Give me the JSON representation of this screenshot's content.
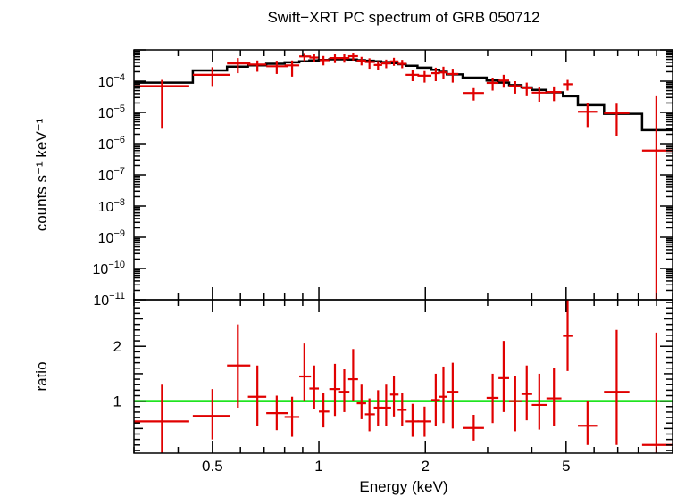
{
  "chart_data": [
    {
      "type": "scatter",
      "panel": "spectrum",
      "title": "Swift−XRT PC spectrum of GRB 050712",
      "xlabel": "Energy (keV)",
      "ylabel": "counts s⁻¹ keV⁻¹",
      "x_scale": "log",
      "y_scale": "log",
      "xlim": [
        0.3,
        10.0
      ],
      "ylim": [
        1e-11,
        0.001
      ],
      "y_ticks": [
        {
          "value": 0.0001,
          "base": "10",
          "exp": "−4"
        },
        {
          "value": 1e-05,
          "base": "10",
          "exp": "−5"
        },
        {
          "value": 1e-06,
          "base": "10",
          "exp": "−6"
        },
        {
          "value": 1e-07,
          "base": "10",
          "exp": "−7"
        },
        {
          "value": 1e-08,
          "base": "10",
          "exp": "−8"
        },
        {
          "value": 1e-09,
          "base": "10",
          "exp": "−9"
        },
        {
          "value": 1e-10,
          "base": "10",
          "exp": "−10"
        },
        {
          "value": 1e-11,
          "base": "10",
          "exp": "−11"
        }
      ],
      "series": [
        {
          "color": "#e00000",
          "points": [
            {
              "x": 0.36,
              "xlo": 0.3,
              "xhi": 0.43,
              "y": 7e-05,
              "ylo": 3e-06,
              "yhi": 0.00011
            },
            {
              "x": 0.5,
              "xlo": 0.44,
              "xhi": 0.56,
              "y": 0.00016,
              "ylo": 7e-05,
              "yhi": 0.00028
            },
            {
              "x": 0.59,
              "xlo": 0.55,
              "xhi": 0.64,
              "y": 0.00037,
              "ylo": 0.00018,
              "yhi": 0.00055
            },
            {
              "x": 0.67,
              "xlo": 0.63,
              "xhi": 0.71,
              "y": 0.00034,
              "ylo": 0.0002,
              "yhi": 0.00046
            },
            {
              "x": 0.76,
              "xlo": 0.71,
              "xhi": 0.82,
              "y": 0.0003,
              "ylo": 0.00017,
              "yhi": 0.00045
            },
            {
              "x": 0.84,
              "xlo": 0.8,
              "xhi": 0.88,
              "y": 0.00032,
              "ylo": 0.00014,
              "yhi": 0.00046
            },
            {
              "x": 0.91,
              "xlo": 0.88,
              "xhi": 0.95,
              "y": 0.00062,
              "ylo": 0.00044,
              "yhi": 0.0008
            },
            {
              "x": 0.97,
              "xlo": 0.94,
              "xhi": 1.0,
              "y": 0.00057,
              "ylo": 0.0004,
              "yhi": 0.00075
            },
            {
              "x": 1.03,
              "xlo": 1.0,
              "xhi": 1.07,
              "y": 0.00047,
              "ylo": 0.00032,
              "yhi": 0.00064
            },
            {
              "x": 1.11,
              "xlo": 1.07,
              "xhi": 1.15,
              "y": 0.00055,
              "ylo": 0.00038,
              "yhi": 0.00076
            },
            {
              "x": 1.18,
              "xlo": 1.14,
              "xhi": 1.22,
              "y": 0.00055,
              "ylo": 0.00039,
              "yhi": 0.00074
            },
            {
              "x": 1.25,
              "xlo": 1.21,
              "xhi": 1.29,
              "y": 0.00063,
              "ylo": 0.00046,
              "yhi": 0.00082
            },
            {
              "x": 1.32,
              "xlo": 1.28,
              "xhi": 1.36,
              "y": 0.00045,
              "ylo": 0.00032,
              "yhi": 0.0006
            },
            {
              "x": 1.39,
              "xlo": 1.35,
              "xhi": 1.44,
              "y": 0.00041,
              "ylo": 0.00025,
              "yhi": 0.00054
            },
            {
              "x": 1.47,
              "xlo": 1.43,
              "xhi": 1.51,
              "y": 0.00033,
              "ylo": 0.00023,
              "yhi": 0.00044
            },
            {
              "x": 1.55,
              "xlo": 1.5,
              "xhi": 1.6,
              "y": 0.00037,
              "ylo": 0.00026,
              "yhi": 0.00049
            },
            {
              "x": 1.63,
              "xlo": 1.59,
              "xhi": 1.68,
              "y": 0.00043,
              "ylo": 0.00031,
              "yhi": 0.00056
            },
            {
              "x": 1.72,
              "xlo": 1.67,
              "xhi": 1.77,
              "y": 0.00036,
              "ylo": 0.00026,
              "yhi": 0.00048
            },
            {
              "x": 1.84,
              "xlo": 1.76,
              "xhi": 1.92,
              "y": 0.00016,
              "ylo": 0.0001,
              "yhi": 0.00023
            },
            {
              "x": 1.99,
              "xlo": 1.9,
              "xhi": 2.08,
              "y": 0.00015,
              "ylo": 9e-05,
              "yhi": 0.00021
            },
            {
              "x": 2.14,
              "xlo": 2.08,
              "xhi": 2.2,
              "y": 0.00018,
              "ylo": 0.0001,
              "yhi": 0.00027
            },
            {
              "x": 2.25,
              "xlo": 2.19,
              "xhi": 2.31,
              "y": 0.00019,
              "ylo": 0.00012,
              "yhi": 0.00029
            },
            {
              "x": 2.39,
              "xlo": 2.3,
              "xhi": 2.48,
              "y": 0.00017,
              "ylo": 9e-05,
              "yhi": 0.00025
            },
            {
              "x": 2.74,
              "xlo": 2.55,
              "xhi": 2.93,
              "y": 4.2e-05,
              "ylo": 2.4e-05,
              "yhi": 6e-05
            },
            {
              "x": 3.1,
              "xlo": 2.98,
              "xhi": 3.22,
              "y": 8.8e-05,
              "ylo": 5e-05,
              "yhi": 0.00013
            },
            {
              "x": 3.33,
              "xlo": 3.22,
              "xhi": 3.45,
              "y": 0.000105,
              "ylo": 6.2e-05,
              "yhi": 0.00016
            },
            {
              "x": 3.59,
              "xlo": 3.45,
              "xhi": 3.74,
              "y": 7e-05,
              "ylo": 4e-05,
              "yhi": 0.0001
            },
            {
              "x": 3.87,
              "xlo": 3.74,
              "xhi": 4.01,
              "y": 6e-05,
              "ylo": 3.3e-05,
              "yhi": 9e-05
            },
            {
              "x": 4.2,
              "xlo": 4.0,
              "xhi": 4.41,
              "y": 4.3e-05,
              "ylo": 2.2e-05,
              "yhi": 6.5e-05
            },
            {
              "x": 4.62,
              "xlo": 4.4,
              "xhi": 4.85,
              "y": 4.5e-05,
              "ylo": 2.3e-05,
              "yhi": 6.8e-05
            },
            {
              "x": 5.05,
              "xlo": 4.9,
              "xhi": 5.21,
              "y": 8e-05,
              "ylo": 5e-05,
              "yhi": 0.00011
            },
            {
              "x": 5.75,
              "xlo": 5.4,
              "xhi": 6.12,
              "y": 1.05e-05,
              "ylo": 3.4e-06,
              "yhi": 2e-05
            },
            {
              "x": 6.95,
              "xlo": 6.4,
              "xhi": 7.55,
              "y": 9.5e-06,
              "ylo": 1.8e-06,
              "yhi": 1.9e-05
            },
            {
              "x": 9.0,
              "xlo": 8.2,
              "xhi": 10.0,
              "y": 6e-07,
              "ylo": 1e-11,
              "yhi": 3.3e-05
            }
          ]
        }
      ],
      "model": {
        "color": "#000000",
        "steps": [
          {
            "xlo": 0.3,
            "xhi": 0.44,
            "y": 9e-05
          },
          {
            "xlo": 0.44,
            "xhi": 0.55,
            "y": 0.00022
          },
          {
            "xlo": 0.55,
            "xhi": 0.63,
            "y": 0.00029
          },
          {
            "xlo": 0.63,
            "xhi": 0.71,
            "y": 0.00032
          },
          {
            "xlo": 0.71,
            "xhi": 0.8,
            "y": 0.00036
          },
          {
            "xlo": 0.8,
            "xhi": 0.88,
            "y": 0.0004
          },
          {
            "xlo": 0.88,
            "xhi": 0.94,
            "y": 0.00043
          },
          {
            "xlo": 0.94,
            "xhi": 1.0,
            "y": 0.00046
          },
          {
            "xlo": 1.0,
            "xhi": 1.07,
            "y": 0.00048
          },
          {
            "xlo": 1.07,
            "xhi": 1.14,
            "y": 0.0005
          },
          {
            "xlo": 1.14,
            "xhi": 1.21,
            "y": 0.0005
          },
          {
            "xlo": 1.21,
            "xhi": 1.28,
            "y": 0.00049
          },
          {
            "xlo": 1.28,
            "xhi": 1.35,
            "y": 0.00047
          },
          {
            "xlo": 1.35,
            "xhi": 1.43,
            "y": 0.00045
          },
          {
            "xlo": 1.43,
            "xhi": 1.5,
            "y": 0.00043
          },
          {
            "xlo": 1.5,
            "xhi": 1.59,
            "y": 0.00041
          },
          {
            "xlo": 1.59,
            "xhi": 1.67,
            "y": 0.00038
          },
          {
            "xlo": 1.67,
            "xhi": 1.76,
            "y": 0.00035
          },
          {
            "xlo": 1.76,
            "xhi": 1.9,
            "y": 0.00031
          },
          {
            "xlo": 1.9,
            "xhi": 2.08,
            "y": 0.00027
          },
          {
            "xlo": 2.08,
            "xhi": 2.19,
            "y": 0.00023
          },
          {
            "xlo": 2.19,
            "xhi": 2.3,
            "y": 0.0002
          },
          {
            "xlo": 2.3,
            "xhi": 2.55,
            "y": 0.000165
          },
          {
            "xlo": 2.55,
            "xhi": 2.98,
            "y": 0.00013
          },
          {
            "xlo": 2.98,
            "xhi": 3.22,
            "y": 0.000105
          },
          {
            "xlo": 3.22,
            "xhi": 3.45,
            "y": 9e-05
          },
          {
            "xlo": 3.45,
            "xhi": 3.74,
            "y": 7.5e-05
          },
          {
            "xlo": 3.74,
            "xhi": 4.0,
            "y": 6.3e-05
          },
          {
            "xlo": 4.0,
            "xhi": 4.4,
            "y": 5.3e-05
          },
          {
            "xlo": 4.4,
            "xhi": 4.9,
            "y": 4.4e-05
          },
          {
            "xlo": 4.9,
            "xhi": 5.4,
            "y": 3.3e-05
          },
          {
            "xlo": 5.4,
            "xhi": 6.4,
            "y": 1.7e-05
          },
          {
            "xlo": 6.4,
            "xhi": 8.2,
            "y": 9e-06
          },
          {
            "xlo": 8.2,
            "xhi": 10.0,
            "y": 2.7e-06
          }
        ]
      }
    },
    {
      "type": "scatter",
      "panel": "ratio",
      "xlabel": "Energy (keV)",
      "ylabel": "ratio",
      "x_scale": "log",
      "y_scale": "linear",
      "xlim": [
        0.3,
        10.0
      ],
      "ylim": [
        0.05,
        2.85
      ],
      "x_ticks": [
        {
          "value": 0.5,
          "label": "0.5"
        },
        {
          "value": 1,
          "label": "1"
        },
        {
          "value": 2,
          "label": "2"
        },
        {
          "value": 5,
          "label": "5"
        }
      ],
      "y_ticks": [
        {
          "value": 1,
          "label": "1"
        },
        {
          "value": 2,
          "label": "2"
        }
      ],
      "reference_line": {
        "y": 1,
        "color": "#00e000"
      },
      "series": [
        {
          "color": "#e00000",
          "points": [
            {
              "x": 0.36,
              "xlo": 0.3,
              "xhi": 0.43,
              "y": 0.63,
              "ylo": 0.05,
              "yhi": 1.3
            },
            {
              "x": 0.5,
              "xlo": 0.44,
              "xhi": 0.56,
              "y": 0.73,
              "ylo": 0.3,
              "yhi": 1.22
            },
            {
              "x": 0.59,
              "xlo": 0.55,
              "xhi": 0.64,
              "y": 1.65,
              "ylo": 0.88,
              "yhi": 2.4
            },
            {
              "x": 0.67,
              "xlo": 0.63,
              "xhi": 0.71,
              "y": 1.08,
              "ylo": 0.55,
              "yhi": 1.65
            },
            {
              "x": 0.76,
              "xlo": 0.71,
              "xhi": 0.82,
              "y": 0.78,
              "ylo": 0.47,
              "yhi": 1.1
            },
            {
              "x": 0.84,
              "xlo": 0.8,
              "xhi": 0.88,
              "y": 0.71,
              "ylo": 0.35,
              "yhi": 1.08
            },
            {
              "x": 0.91,
              "xlo": 0.88,
              "xhi": 0.95,
              "y": 1.45,
              "ylo": 1.0,
              "yhi": 2.05
            },
            {
              "x": 0.97,
              "xlo": 0.94,
              "xhi": 1.0,
              "y": 1.23,
              "ylo": 0.85,
              "yhi": 1.65
            },
            {
              "x": 1.03,
              "xlo": 1.0,
              "xhi": 1.07,
              "y": 0.81,
              "ylo": 0.52,
              "yhi": 1.15
            },
            {
              "x": 1.11,
              "xlo": 1.07,
              "xhi": 1.15,
              "y": 1.22,
              "ylo": 0.73,
              "yhi": 1.68
            },
            {
              "x": 1.18,
              "xlo": 1.14,
              "xhi": 1.22,
              "y": 1.17,
              "ylo": 0.8,
              "yhi": 1.58
            },
            {
              "x": 1.25,
              "xlo": 1.21,
              "xhi": 1.29,
              "y": 1.4,
              "ylo": 1.0,
              "yhi": 1.95
            },
            {
              "x": 1.32,
              "xlo": 1.28,
              "xhi": 1.36,
              "y": 0.96,
              "ylo": 0.67,
              "yhi": 1.3
            },
            {
              "x": 1.39,
              "xlo": 1.35,
              "xhi": 1.44,
              "y": 0.76,
              "ylo": 0.45,
              "yhi": 1.05
            },
            {
              "x": 1.47,
              "xlo": 1.43,
              "xhi": 1.51,
              "y": 0.88,
              "ylo": 0.55,
              "yhi": 1.2
            },
            {
              "x": 1.55,
              "xlo": 1.5,
              "xhi": 1.6,
              "y": 0.88,
              "ylo": 0.55,
              "yhi": 1.3
            },
            {
              "x": 1.63,
              "xlo": 1.59,
              "xhi": 1.68,
              "y": 1.12,
              "ylo": 0.72,
              "yhi": 1.45
            },
            {
              "x": 1.72,
              "xlo": 1.67,
              "xhi": 1.77,
              "y": 0.84,
              "ylo": 0.55,
              "yhi": 1.15
            },
            {
              "x": 1.84,
              "xlo": 1.76,
              "xhi": 1.92,
              "y": 0.63,
              "ylo": 0.35,
              "yhi": 0.95
            },
            {
              "x": 1.99,
              "xlo": 1.9,
              "xhi": 2.08,
              "y": 0.63,
              "ylo": 0.35,
              "yhi": 0.9
            },
            {
              "x": 2.14,
              "xlo": 2.08,
              "xhi": 2.2,
              "y": 1.02,
              "ylo": 0.55,
              "yhi": 1.5
            },
            {
              "x": 2.25,
              "xlo": 2.19,
              "xhi": 2.31,
              "y": 1.08,
              "ylo": 0.6,
              "yhi": 1.63
            },
            {
              "x": 2.39,
              "xlo": 2.3,
              "xhi": 2.48,
              "y": 1.17,
              "ylo": 0.5,
              "yhi": 1.7
            },
            {
              "x": 2.74,
              "xlo": 2.55,
              "xhi": 2.93,
              "y": 0.51,
              "ylo": 0.28,
              "yhi": 0.75
            },
            {
              "x": 3.1,
              "xlo": 2.98,
              "xhi": 3.22,
              "y": 1.06,
              "ylo": 0.6,
              "yhi": 1.5
            },
            {
              "x": 3.33,
              "xlo": 3.22,
              "xhi": 3.45,
              "y": 1.42,
              "ylo": 0.8,
              "yhi": 2.1
            },
            {
              "x": 3.59,
              "xlo": 3.45,
              "xhi": 3.74,
              "y": 1.0,
              "ylo": 0.45,
              "yhi": 1.45
            },
            {
              "x": 3.87,
              "xlo": 3.74,
              "xhi": 4.01,
              "y": 1.13,
              "ylo": 0.65,
              "yhi": 1.65
            },
            {
              "x": 4.2,
              "xlo": 4.0,
              "xhi": 4.41,
              "y": 0.93,
              "ylo": 0.48,
              "yhi": 1.5
            },
            {
              "x": 4.62,
              "xlo": 4.4,
              "xhi": 4.85,
              "y": 1.05,
              "ylo": 0.55,
              "yhi": 1.6
            },
            {
              "x": 5.05,
              "xlo": 4.9,
              "xhi": 5.21,
              "y": 2.19,
              "ylo": 1.55,
              "yhi": 2.85
            },
            {
              "x": 5.75,
              "xlo": 5.4,
              "xhi": 6.12,
              "y": 0.55,
              "ylo": 0.2,
              "yhi": 1.0
            },
            {
              "x": 6.95,
              "xlo": 6.4,
              "xhi": 7.55,
              "y": 1.17,
              "ylo": 0.2,
              "yhi": 2.3
            },
            {
              "x": 9.0,
              "xlo": 8.2,
              "xhi": 10.0,
              "y": 0.2,
              "ylo": 0.05,
              "yhi": 2.25
            }
          ]
        }
      ]
    }
  ]
}
